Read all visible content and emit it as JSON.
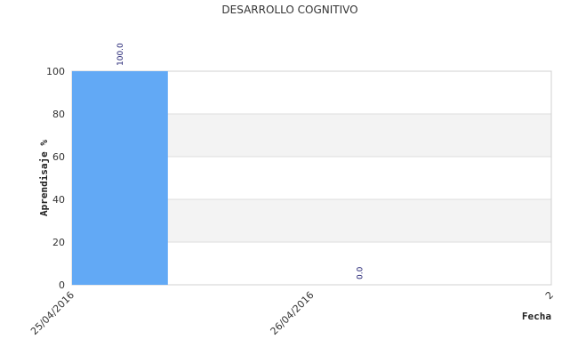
{
  "chart_data": {
    "type": "bar",
    "title": "DESARROLLO COGNITIVO",
    "x_label": "Fecha",
    "y_label": "Aprendisaje %",
    "categories": [
      "25/04/2016",
      "26/04/2016",
      "2"
    ],
    "values": [
      100,
      0,
      null
    ],
    "value_labels": [
      "100.0",
      "0.0",
      null
    ],
    "color": "#62a9f5",
    "ylim": [
      0,
      100
    ],
    "yticks": [
      0,
      20,
      40,
      60,
      80,
      100
    ],
    "grid": true
  }
}
